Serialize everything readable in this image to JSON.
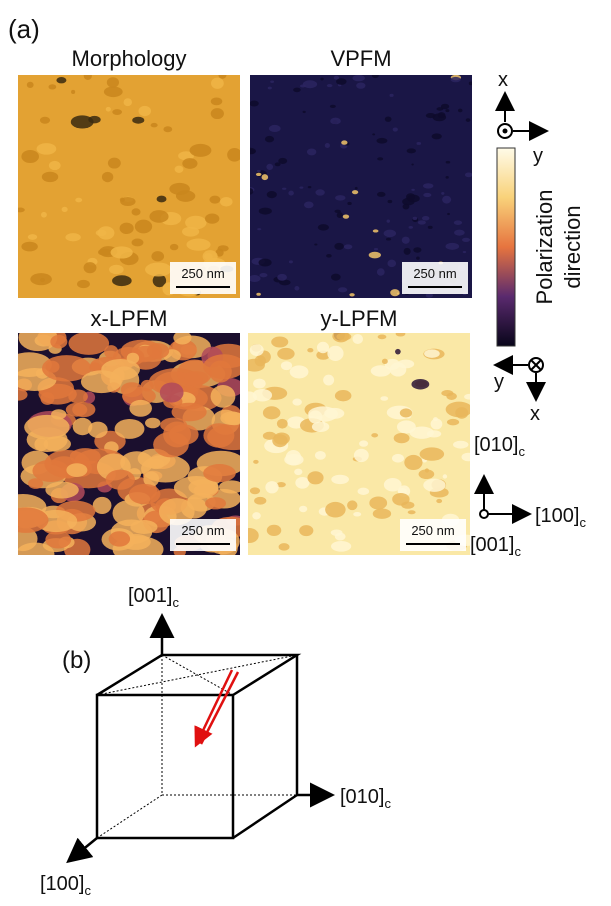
{
  "panel_a": {
    "label": "(a)",
    "images": [
      {
        "title": "Morphology",
        "scale_bar": "250 nm"
      },
      {
        "title": "VPFM",
        "scale_bar": "250 nm"
      },
      {
        "title": "x-LPFM",
        "scale_bar": "250 nm"
      },
      {
        "title": "y-LPFM",
        "scale_bar": "250 nm"
      }
    ],
    "colorbar": {
      "label_lines": [
        "Polarization",
        "direction"
      ]
    },
    "top_axes": {
      "up": "x",
      "right": "y"
    },
    "bottom_axes": {
      "left": "y",
      "down": "x"
    },
    "crystal_axes": {
      "up": {
        "main": "[010]",
        "sub": "c"
      },
      "right": {
        "main": "[100]",
        "sub": "c"
      },
      "out": {
        "main": "[001]",
        "sub": "c"
      }
    }
  },
  "panel_b": {
    "label": "(b)",
    "axes": {
      "up": {
        "main": "[001]",
        "sub": "c"
      },
      "right": {
        "main": "[010]",
        "sub": "c"
      },
      "front": {
        "main": "[100]",
        "sub": "c"
      }
    }
  }
}
